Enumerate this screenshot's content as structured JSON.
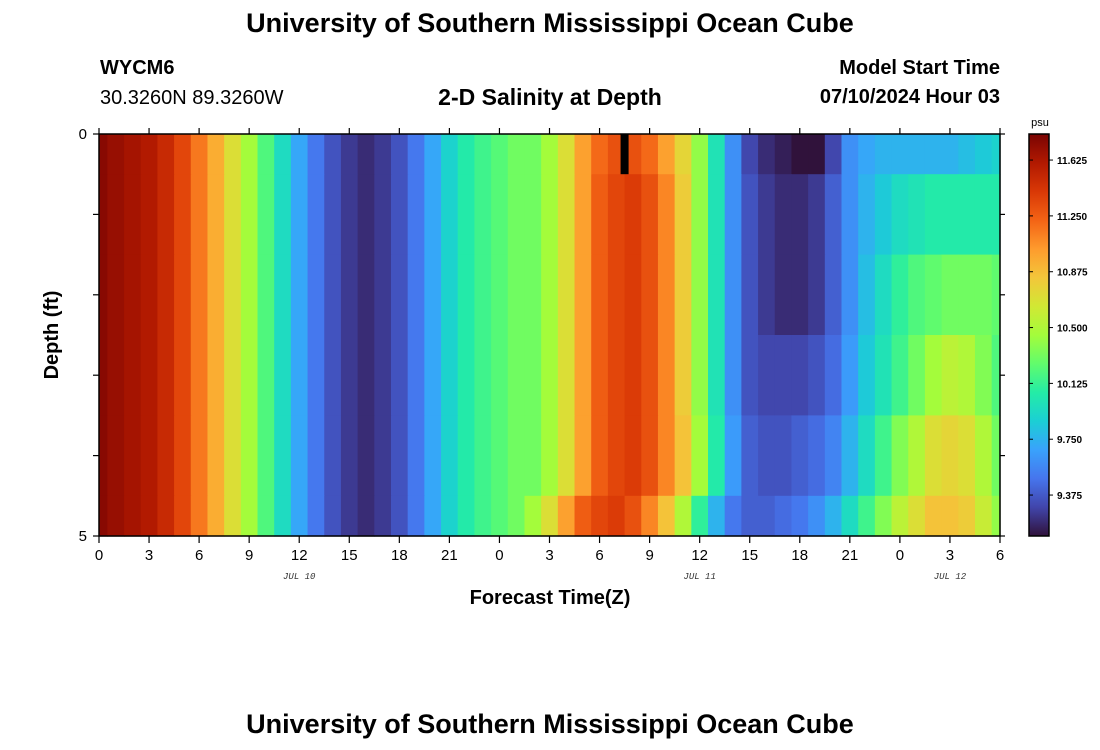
{
  "header": {
    "title": "University of Southern Mississippi Ocean Cube",
    "station": "WYCM6",
    "coords": "30.3260N  89.3260W",
    "plot_title": "2-D Salinity at Depth",
    "model_label": "Model Start Time",
    "model_time": "07/10/2024 Hour 03",
    "footer_title": "University of Southern Mississippi Ocean Cube"
  },
  "chart_data": {
    "type": "heatmap",
    "title": "2-D Salinity at Depth",
    "xlabel": "Forecast Time(Z)",
    "ylabel": "Depth (ft)",
    "x_tick_labels": [
      "0",
      "3",
      "6",
      "9",
      "12",
      "15",
      "18",
      "21",
      "0",
      "3",
      "6",
      "9",
      "12",
      "15",
      "18",
      "21",
      "0",
      "3",
      "6"
    ],
    "x_hours_range": [
      0,
      54
    ],
    "date_labels": [
      {
        "text": "JUL 10",
        "hour": 12
      },
      {
        "text": "JUL 11",
        "hour": 36
      },
      {
        "text": "JUL 12",
        "hour": 51
      }
    ],
    "y_tick_labels": [
      "0",
      "5"
    ],
    "ylim": [
      0,
      5
    ],
    "y_inverted": true,
    "depth_levels_ft": [
      0,
      1,
      2,
      3,
      4,
      5
    ],
    "colorbar": {
      "unit": "psu",
      "range": [
        9.1,
        11.8
      ],
      "tick_labels": [
        "11.625",
        "11.250",
        "10.875",
        "10.500",
        "10.125",
        "9.750",
        "9.375"
      ],
      "tick_values": [
        11.625,
        11.25,
        10.875,
        10.5,
        10.125,
        9.75,
        9.375
      ],
      "colormap": [
        "#30123b",
        "#4145ab",
        "#4675ed",
        "#39a2fc",
        "#1bcfd4",
        "#24eca6",
        "#61fc6c",
        "#a4fc3b",
        "#d1e834",
        "#f3c63a",
        "#fe9b2d",
        "#f36315",
        "#d93806",
        "#b11901",
        "#7a0403"
      ]
    },
    "hour_step": 1,
    "rows": [
      {
        "depth_ft": [
          0,
          0.5
        ],
        "salinity_psu": [
          11.75,
          11.7,
          11.65,
          11.6,
          11.5,
          11.35,
          11.15,
          10.95,
          10.7,
          10.45,
          10.2,
          9.95,
          9.7,
          9.5,
          9.35,
          9.25,
          9.2,
          9.25,
          9.35,
          9.5,
          9.7,
          9.9,
          10.05,
          10.15,
          10.22,
          10.3,
          10.3,
          10.45,
          10.7,
          11.0,
          11.2,
          11.3,
          11.3,
          11.2,
          11.0,
          10.75,
          10.4,
          10.0,
          9.6,
          9.3,
          9.2,
          9.15,
          9.1,
          9.1,
          9.3,
          9.6,
          9.7,
          9.75,
          9.75,
          9.75,
          9.75,
          9.75,
          9.8,
          9.85,
          9.9
        ]
      },
      {
        "depth_ft": [
          0.5,
          1.5
        ],
        "salinity_psu": [
          11.75,
          11.7,
          11.65,
          11.6,
          11.5,
          11.35,
          11.15,
          10.95,
          10.7,
          10.45,
          10.2,
          9.95,
          9.7,
          9.5,
          9.35,
          9.25,
          9.2,
          9.25,
          9.35,
          9.5,
          9.7,
          9.9,
          10.05,
          10.15,
          10.22,
          10.3,
          10.3,
          10.45,
          10.7,
          11.0,
          11.25,
          11.35,
          11.4,
          11.3,
          11.1,
          10.8,
          10.4,
          10.0,
          9.6,
          9.35,
          9.25,
          9.2,
          9.2,
          9.25,
          9.4,
          9.6,
          9.75,
          9.85,
          9.95,
          10.0,
          10.05,
          10.05,
          10.05,
          10.05,
          10.05
        ]
      },
      {
        "depth_ft": [
          1.5,
          2.5
        ],
        "salinity_psu": [
          11.75,
          11.7,
          11.65,
          11.6,
          11.5,
          11.35,
          11.15,
          10.95,
          10.7,
          10.45,
          10.2,
          9.95,
          9.7,
          9.5,
          9.35,
          9.25,
          9.2,
          9.25,
          9.35,
          9.5,
          9.7,
          9.9,
          10.05,
          10.15,
          10.22,
          10.3,
          10.3,
          10.45,
          10.7,
          11.0,
          11.25,
          11.35,
          11.4,
          11.3,
          11.1,
          10.8,
          10.4,
          10.0,
          9.6,
          9.35,
          9.25,
          9.2,
          9.2,
          9.25,
          9.4,
          9.6,
          9.8,
          9.95,
          10.1,
          10.2,
          10.25,
          10.3,
          10.3,
          10.3,
          10.25
        ]
      },
      {
        "depth_ft": [
          2.5,
          3.5
        ],
        "salinity_psu": [
          11.75,
          11.7,
          11.65,
          11.6,
          11.5,
          11.35,
          11.15,
          10.95,
          10.7,
          10.45,
          10.2,
          9.95,
          9.7,
          9.5,
          9.35,
          9.25,
          9.2,
          9.25,
          9.35,
          9.5,
          9.7,
          9.9,
          10.05,
          10.15,
          10.22,
          10.3,
          10.3,
          10.45,
          10.7,
          11.0,
          11.25,
          11.35,
          11.4,
          11.3,
          11.1,
          10.8,
          10.4,
          10.0,
          9.6,
          9.35,
          9.3,
          9.3,
          9.3,
          9.35,
          9.45,
          9.65,
          9.85,
          10.0,
          10.15,
          10.3,
          10.45,
          10.55,
          10.5,
          10.35,
          10.2
        ]
      },
      {
        "depth_ft": [
          3.5,
          4.5
        ],
        "salinity_psu": [
          11.75,
          11.7,
          11.65,
          11.6,
          11.5,
          11.35,
          11.15,
          10.95,
          10.7,
          10.45,
          10.2,
          9.95,
          9.7,
          9.5,
          9.35,
          9.25,
          9.2,
          9.25,
          9.35,
          9.5,
          9.7,
          9.9,
          10.05,
          10.15,
          10.22,
          10.3,
          10.3,
          10.45,
          10.7,
          11.0,
          11.25,
          11.35,
          11.4,
          11.3,
          11.1,
          10.85,
          10.45,
          10.05,
          9.65,
          9.4,
          9.35,
          9.35,
          9.4,
          9.45,
          9.55,
          9.75,
          9.95,
          10.15,
          10.35,
          10.5,
          10.7,
          10.75,
          10.7,
          10.5,
          10.3
        ]
      },
      {
        "depth_ft": [
          4.5,
          5
        ],
        "salinity_psu": [
          11.75,
          11.7,
          11.65,
          11.6,
          11.5,
          11.35,
          11.15,
          10.95,
          10.7,
          10.45,
          10.2,
          9.95,
          9.7,
          9.5,
          9.35,
          9.25,
          9.2,
          9.25,
          9.35,
          9.5,
          9.7,
          9.9,
          10.05,
          10.15,
          10.22,
          10.3,
          10.45,
          10.7,
          11.0,
          11.25,
          11.35,
          11.4,
          11.3,
          11.1,
          10.85,
          10.5,
          10.1,
          9.75,
          9.5,
          9.4,
          9.4,
          9.45,
          9.5,
          9.6,
          9.75,
          9.95,
          10.15,
          10.35,
          10.55,
          10.7,
          10.85,
          10.85,
          10.8,
          10.6,
          10.4
        ]
      }
    ],
    "no_data_marks": [
      {
        "hour": 31.5,
        "depth_ft": [
          0,
          0.5
        ]
      }
    ]
  }
}
